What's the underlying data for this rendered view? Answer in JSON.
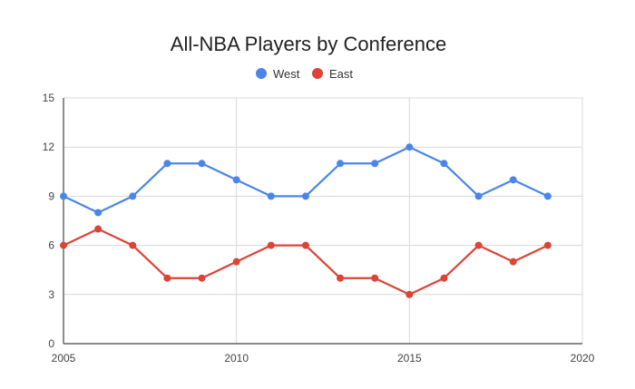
{
  "chart_data": {
    "type": "line",
    "title": "All-NBA Players by Conference",
    "xlabel": "",
    "ylabel": "",
    "x": [
      2005,
      2006,
      2007,
      2008,
      2009,
      2010,
      2011,
      2012,
      2013,
      2014,
      2015,
      2016,
      2017,
      2018,
      2019
    ],
    "series": [
      {
        "name": "West",
        "color": "#4a86e8",
        "values": [
          9,
          8,
          9,
          11,
          11,
          10,
          9,
          9,
          11,
          11,
          12,
          11,
          9,
          10,
          9
        ]
      },
      {
        "name": "East",
        "color": "#db4437",
        "values": [
          6,
          7,
          6,
          4,
          4,
          5,
          6,
          6,
          4,
          4,
          3,
          4,
          6,
          5,
          6
        ]
      }
    ],
    "xlim": [
      2005,
      2020
    ],
    "ylim": [
      0,
      15
    ],
    "xticks": [
      2005,
      2010,
      2015,
      2020
    ],
    "yticks": [
      0,
      3,
      6,
      9,
      12,
      15
    ],
    "grid": true,
    "legend_position": "top-center"
  }
}
